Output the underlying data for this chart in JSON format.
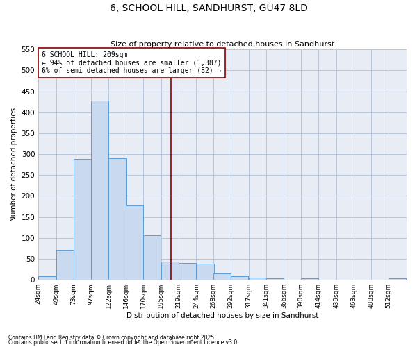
{
  "title": "6, SCHOOL HILL, SANDHURST, GU47 8LD",
  "subtitle": "Size of property relative to detached houses in Sandhurst",
  "xlabel": "Distribution of detached houses by size in Sandhurst",
  "ylabel": "Number of detached properties",
  "bar_color": "#c9d9f0",
  "bar_edge_color": "#5b9bd5",
  "background_color": "#ffffff",
  "ax_background_color": "#e8edf5",
  "grid_color": "#b8c4d8",
  "annotation_text": "6 SCHOOL HILL: 209sqm\n← 94% of detached houses are smaller (1,387)\n6% of semi-detached houses are larger (82) →",
  "vline_x": 209,
  "vline_color": "#8b0000",
  "categories": [
    "24sqm",
    "49sqm",
    "73sqm",
    "97sqm",
    "122sqm",
    "146sqm",
    "170sqm",
    "195sqm",
    "219sqm",
    "244sqm",
    "268sqm",
    "292sqm",
    "317sqm",
    "341sqm",
    "366sqm",
    "390sqm",
    "414sqm",
    "439sqm",
    "463sqm",
    "488sqm",
    "512sqm"
  ],
  "bin_edges": [
    24,
    49,
    73,
    97,
    122,
    146,
    170,
    195,
    219,
    244,
    268,
    292,
    317,
    341,
    366,
    390,
    414,
    439,
    463,
    488,
    512
  ],
  "bar_heights": [
    8,
    72,
    288,
    428,
    290,
    178,
    106,
    43,
    40,
    38,
    16,
    8,
    5,
    3,
    0,
    3,
    0,
    1,
    0,
    0,
    3
  ],
  "ylim": [
    0,
    550
  ],
  "yticks": [
    0,
    50,
    100,
    150,
    200,
    250,
    300,
    350,
    400,
    450,
    500,
    550
  ],
  "footnote1": "Contains HM Land Registry data © Crown copyright and database right 2025.",
  "footnote2": "Contains public sector information licensed under the Open Government Licence v3.0."
}
